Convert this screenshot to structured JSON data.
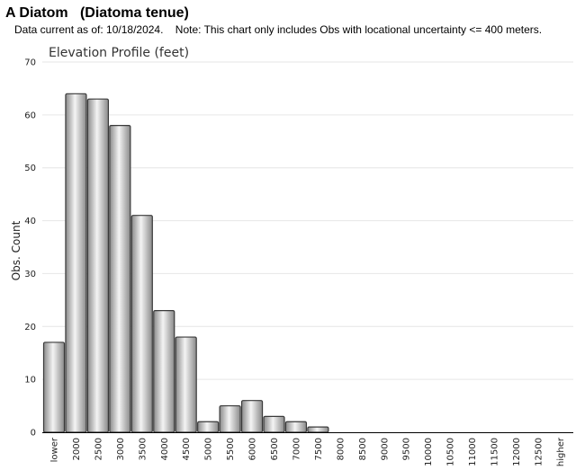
{
  "header": {
    "title": "A Diatom   (Diatoma tenue)",
    "note": "Data current as of: 10/18/2024.    Note: This chart only includes Obs with locational uncertainty <= 400 meters."
  },
  "colors": {
    "bar_light": "#f4f4f4",
    "bar_dark": "#8a8a8a",
    "bar_stroke": "#3a3a3a",
    "grid": "#e6e6e6",
    "axis": "#000000"
  },
  "chart_data": {
    "type": "bar",
    "title": "Elevation Profile (feet)",
    "xlabel": "",
    "ylabel": "Obs. Count",
    "ylim": [
      0,
      70
    ],
    "yticks": [
      0,
      10,
      20,
      30,
      40,
      50,
      60,
      70
    ],
    "grid": true,
    "legend": "none",
    "categories": [
      "lower",
      "2000",
      "2500",
      "3000",
      "3500",
      "4000",
      "4500",
      "5000",
      "5500",
      "6000",
      "6500",
      "7000",
      "7500",
      "8000",
      "8500",
      "9000",
      "9500",
      "10000",
      "10500",
      "11000",
      "11500",
      "12000",
      "12500",
      "higher"
    ],
    "values": [
      17,
      64,
      63,
      58,
      41,
      23,
      18,
      2,
      5,
      6,
      3,
      2,
      1,
      0,
      0,
      0,
      0,
      0,
      0,
      0,
      0,
      0,
      0,
      0
    ]
  }
}
